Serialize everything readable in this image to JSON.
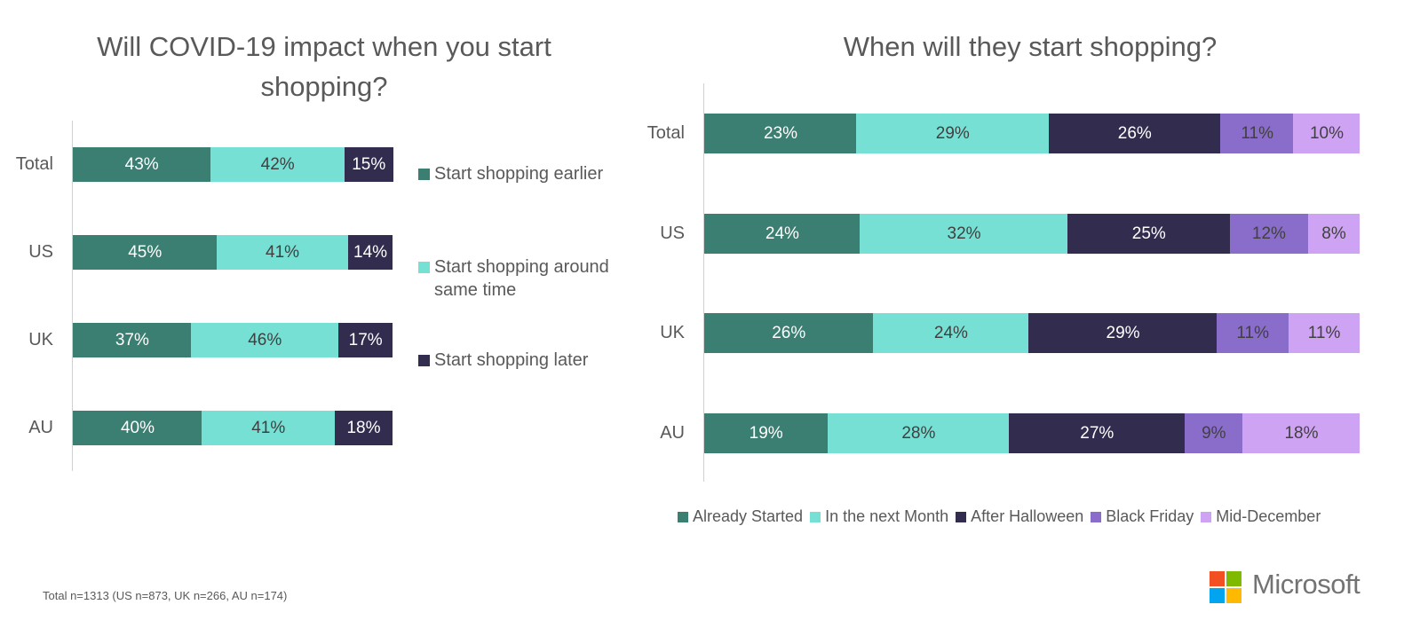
{
  "chart_data": [
    {
      "type": "bar",
      "orientation": "horizontal",
      "stacked": true,
      "title": "Will COVID-19 impact when you start shopping?",
      "categories": [
        "Total",
        "US",
        "UK",
        "AU"
      ],
      "series": [
        {
          "name": "Start shopping earlier",
          "values": [
            43,
            45,
            37,
            40
          ],
          "labels": [
            "43%",
            "45%",
            "37%",
            "40%"
          ],
          "color": "#3A7F72",
          "text_color": "#ffffff"
        },
        {
          "name": "Start shopping around same time",
          "values": [
            42,
            41,
            46,
            41
          ],
          "labels": [
            "42%",
            "41%",
            "46%",
            "41%"
          ],
          "color": "#75E0D3",
          "text_color": "#404040"
        },
        {
          "name": "Start shopping later",
          "values": [
            15,
            14,
            17,
            18
          ],
          "labels": [
            "15%",
            "14%",
            "17%",
            "18%"
          ],
          "color": "#322C4E",
          "text_color": "#ffffff"
        }
      ],
      "xlim": [
        0,
        100
      ],
      "legend": "right",
      "grid": false
    },
    {
      "type": "bar",
      "orientation": "horizontal",
      "stacked": true,
      "title": "When will they start shopping?",
      "categories": [
        "Total",
        "US",
        "UK",
        "AU"
      ],
      "series": [
        {
          "name": "Already Started",
          "values": [
            23,
            24,
            26,
            19
          ],
          "labels": [
            "23%",
            "24%",
            "26%",
            "19%"
          ],
          "color": "#3A7F72",
          "text_color": "#ffffff"
        },
        {
          "name": "In the next Month",
          "values": [
            29,
            32,
            24,
            28
          ],
          "labels": [
            "29%",
            "32%",
            "24%",
            "28%"
          ],
          "color": "#75E0D3",
          "text_color": "#404040"
        },
        {
          "name": "After Halloween",
          "values": [
            26,
            25,
            29,
            27
          ],
          "labels": [
            "26%",
            "25%",
            "29%",
            "27%"
          ],
          "color": "#322C4E",
          "text_color": "#ffffff"
        },
        {
          "name": "Black Friday",
          "values": [
            11,
            12,
            11,
            9
          ],
          "labels": [
            "11%",
            "12%",
            "11%",
            "9%"
          ],
          "color": "#8A6CCB",
          "text_color": "#404040"
        },
        {
          "name": "Mid-December",
          "values": [
            10,
            8,
            11,
            18
          ],
          "labels": [
            "10%",
            "8%",
            "11%",
            "18%"
          ],
          "color": "#CFA3F3",
          "text_color": "#404040"
        }
      ],
      "xlim": [
        0,
        100
      ],
      "legend": "bottom",
      "grid": false
    }
  ],
  "footnote": "Total n=1313 (US n=873, UK n=266, AU n=174)",
  "brand": {
    "name": "Microsoft",
    "logo_colors": [
      "#F25022",
      "#7FBA00",
      "#00A4EF",
      "#FFB900"
    ]
  }
}
